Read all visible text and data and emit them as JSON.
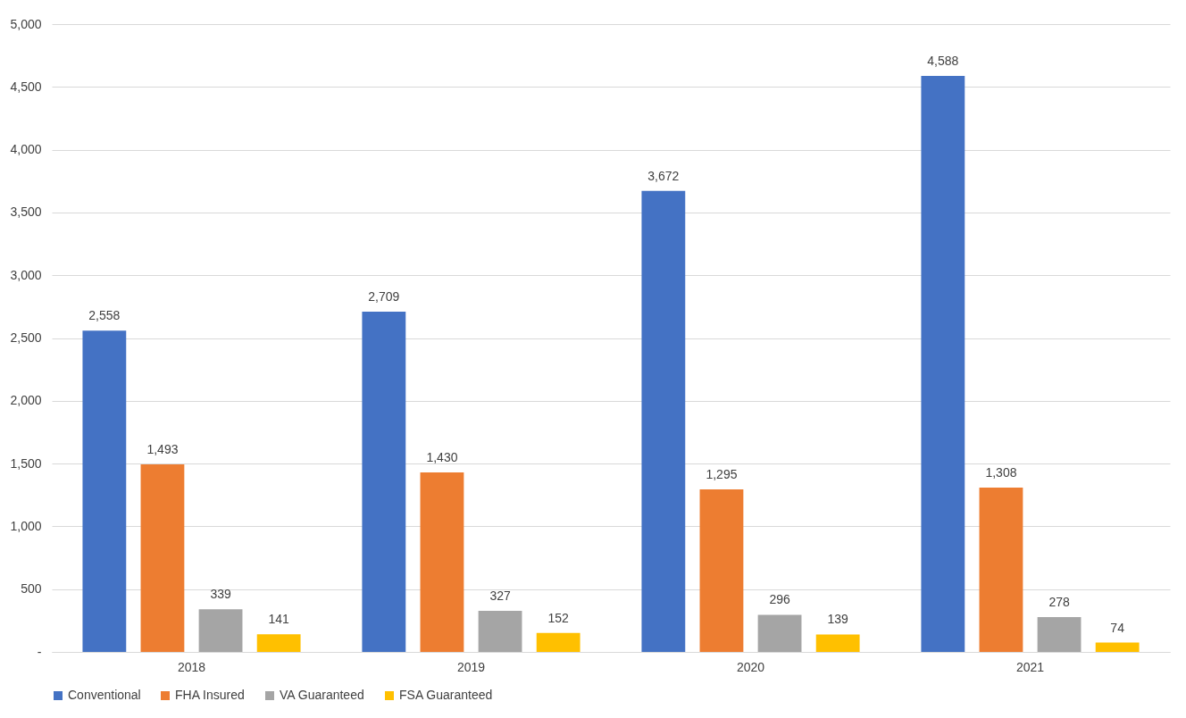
{
  "chart_data": {
    "type": "bar",
    "categories": [
      "2018",
      "2019",
      "2020",
      "2021"
    ],
    "series": [
      {
        "name": "Conventional",
        "color": "#4472c4",
        "values": [
          2558,
          2709,
          3672,
          4588
        ],
        "value_labels": [
          "2,558",
          "2,709",
          "3,672",
          "4,588"
        ]
      },
      {
        "name": "FHA Insured",
        "color": "#ed7d31",
        "values": [
          1493,
          1430,
          1295,
          1308
        ],
        "value_labels": [
          "1,493",
          "1,430",
          "1,295",
          "1,308"
        ]
      },
      {
        "name": "VA Guaranteed",
        "color": "#a5a5a5",
        "values": [
          339,
          327,
          296,
          278
        ],
        "value_labels": [
          "339",
          "327",
          "296",
          "278"
        ]
      },
      {
        "name": "FSA Guaranteed",
        "color": "#ffc000",
        "values": [
          141,
          152,
          139,
          74
        ],
        "value_labels": [
          "141",
          "152",
          "139",
          "74"
        ]
      }
    ],
    "ylim": [
      0,
      5000
    ],
    "yticks": [
      {
        "value": 0,
        "label": "-"
      },
      {
        "value": 500,
        "label": "500"
      },
      {
        "value": 1000,
        "label": "1,000"
      },
      {
        "value": 1500,
        "label": "1,500"
      },
      {
        "value": 2000,
        "label": "2,000"
      },
      {
        "value": 2500,
        "label": "2,500"
      },
      {
        "value": 3000,
        "label": "3,000"
      },
      {
        "value": 3500,
        "label": "3,500"
      },
      {
        "value": 4000,
        "label": "4,000"
      },
      {
        "value": 4500,
        "label": "4,500"
      },
      {
        "value": 5000,
        "label": "5,000"
      }
    ],
    "grid": "y",
    "legend": "bottom"
  }
}
